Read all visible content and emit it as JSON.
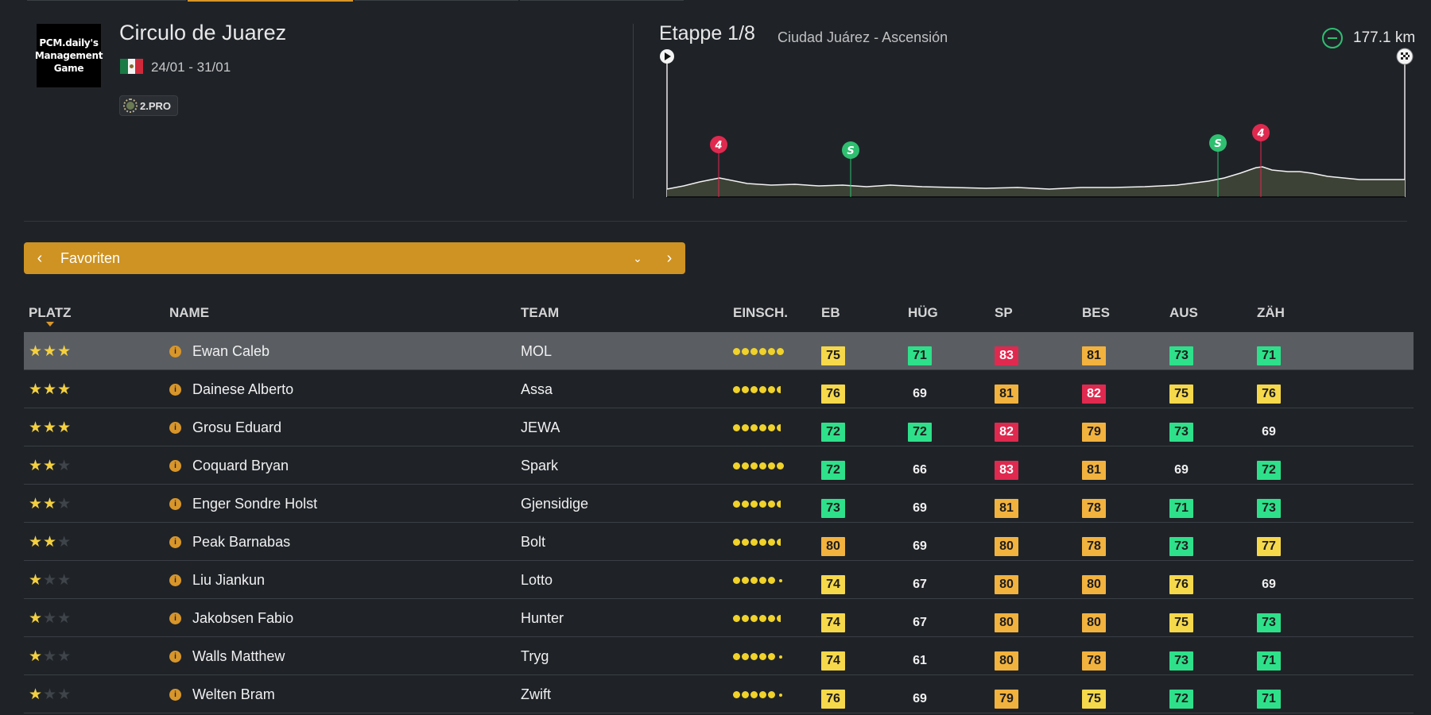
{
  "race": {
    "logo_line1": "PCM.daily's",
    "logo_line2": "Management",
    "logo_line3": "Game",
    "title": "Circulo de Juarez",
    "dates": "24/01 - 31/01",
    "class": "2.PRO"
  },
  "stage": {
    "title": "Etappe 1/8",
    "route": "Ciudad Juárez - Ascensión",
    "distance": "177.1 km"
  },
  "dropdown": {
    "label": "Favoriten"
  },
  "table": {
    "headers": [
      "PLATZ",
      "NAME",
      "TEAM",
      "EINSCH.",
      "EB",
      "HÜG",
      "SP",
      "BES",
      "AUS",
      "ZÄH"
    ],
    "rows": [
      {
        "stars": 3,
        "name": "Ewan Caleb",
        "team": "MOL",
        "form": 6.0,
        "eb": "75",
        "hug": "71",
        "sp": "83",
        "bes": "81",
        "aus": "73",
        "zah": "71",
        "selected": true
      },
      {
        "stars": 3,
        "name": "Dainese Alberto",
        "team": "Assa",
        "form": 5.5,
        "eb": "76",
        "hug": "69",
        "sp": "81",
        "bes": "82",
        "aus": "75",
        "zah": "76"
      },
      {
        "stars": 3,
        "name": "Grosu Eduard",
        "team": "JEWA",
        "form": 5.5,
        "eb": "72",
        "hug": "72",
        "sp": "82",
        "bes": "79",
        "aus": "73",
        "zah": "69"
      },
      {
        "stars": 2,
        "name": "Coquard Bryan",
        "team": "Spark",
        "form": 6.0,
        "eb": "72",
        "hug": "66",
        "sp": "83",
        "bes": "81",
        "aus": "69",
        "zah": "72"
      },
      {
        "stars": 2,
        "name": "Enger Sondre Holst",
        "team": "Gjensidige",
        "form": 5.5,
        "eb": "73",
        "hug": "69",
        "sp": "81",
        "bes": "78",
        "aus": "71",
        "zah": "73"
      },
      {
        "stars": 2,
        "name": "Peak Barnabas",
        "team": "Bolt",
        "form": 5.5,
        "eb": "80",
        "hug": "69",
        "sp": "80",
        "bes": "78",
        "aus": "73",
        "zah": "77"
      },
      {
        "stars": 1,
        "name": "Liu Jiankun",
        "team": "Lotto",
        "form": 5.0,
        "eb": "74",
        "hug": "67",
        "sp": "80",
        "bes": "80",
        "aus": "76",
        "zah": "69"
      },
      {
        "stars": 1,
        "name": "Jakobsen Fabio",
        "team": "Hunter",
        "form": 5.5,
        "eb": "74",
        "hug": "67",
        "sp": "80",
        "bes": "80",
        "aus": "75",
        "zah": "73"
      },
      {
        "stars": 1,
        "name": "Walls Matthew",
        "team": "Tryg",
        "form": 5.0,
        "eb": "74",
        "hug": "61",
        "sp": "80",
        "bes": "78",
        "aus": "73",
        "zah": "71"
      },
      {
        "stars": 1,
        "name": "Welten Bram",
        "team": "Zwift",
        "form": 5.0,
        "eb": "76",
        "hug": "69",
        "sp": "79",
        "bes": "75",
        "aus": "72",
        "zah": "71"
      }
    ]
  },
  "colors": {
    "accent": "#d8962a",
    "background": "#1f2328",
    "stat_yellow": "#f6d84b",
    "stat_orange": "#f2b23e",
    "stat_red": "#e0294f",
    "stat_green": "#2ee08a"
  },
  "icons": {
    "flag": "mexico-flag-icon",
    "class_badge": "laurel-icon",
    "distance": "distance-icon",
    "start": "start-flag-icon",
    "finish": "finish-flag-icon",
    "sprint": "sprint-marker-icon",
    "climb": "climb-cat4-marker-icon",
    "info": "info-icon"
  },
  "profile_markers": {
    "sprint_label": "S",
    "climb_label": "4"
  }
}
